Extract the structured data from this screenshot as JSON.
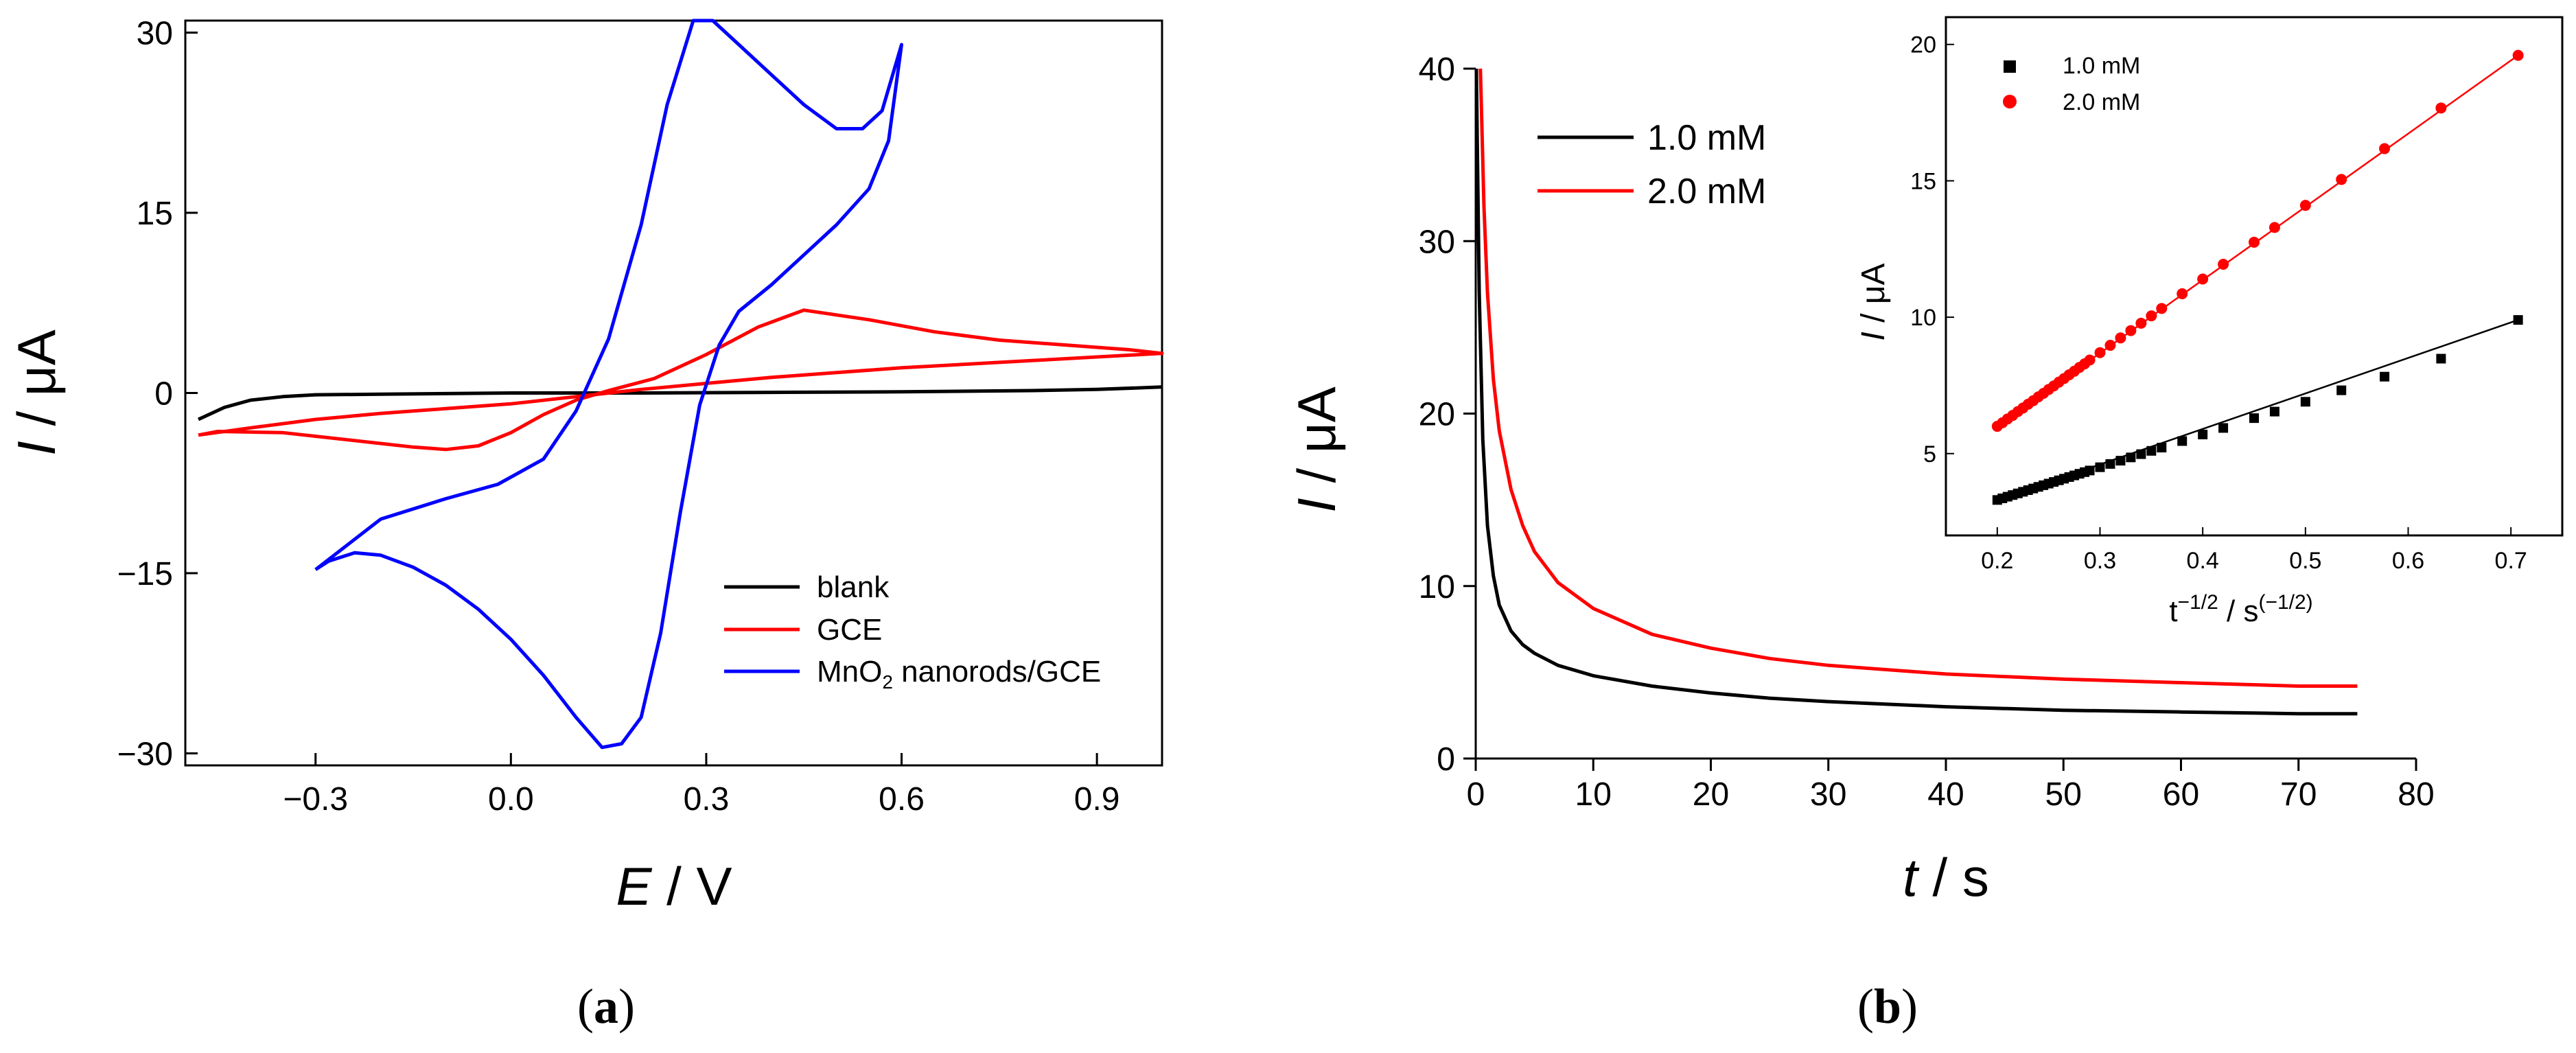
{
  "chart_data": [
    {
      "panel": "(a)",
      "panel_label_open": "(",
      "panel_label_letter": "a",
      "panel_label_close": ")",
      "type": "line",
      "xlabel_var": "E",
      "xlabel_unit": " / V",
      "ylabel_var": "I",
      "ylabel_unit": " / μA",
      "xlim": [
        -0.5,
        1.0
      ],
      "ylim": [
        -31,
        31
      ],
      "xticks": [
        -0.3,
        0.0,
        0.3,
        0.6,
        0.9
      ],
      "xtick_labels": [
        "−0.3",
        "0.0",
        "0.3",
        "0.6",
        "0.9"
      ],
      "yticks": [
        30,
        15,
        0,
        -15,
        -30
      ],
      "ytick_labels": [
        "30",
        "15",
        "0",
        "−15",
        "−30"
      ],
      "legend_position": "bottom-right",
      "series": [
        {
          "name": "blank",
          "color": "#000000",
          "points": [
            [
              -0.48,
              -2.2
            ],
            [
              -0.44,
              -1.2
            ],
            [
              -0.4,
              -0.6
            ],
            [
              -0.35,
              -0.3
            ],
            [
              -0.3,
              -0.15
            ],
            [
              -0.2,
              -0.1
            ],
            [
              0.0,
              0.0
            ],
            [
              0.2,
              0.0
            ],
            [
              0.4,
              0.05
            ],
            [
              0.6,
              0.1
            ],
            [
              0.8,
              0.2
            ],
            [
              0.9,
              0.3
            ],
            [
              1.0,
              0.5
            ]
          ]
        },
        {
          "name": "GCE",
          "color": "#ff0000",
          "points": [
            [
              -0.48,
              -3.5
            ],
            [
              -0.4,
              -2.9
            ],
            [
              -0.3,
              -2.2
            ],
            [
              -0.2,
              -1.7
            ],
            [
              -0.1,
              -1.3
            ],
            [
              0.0,
              -0.9
            ],
            [
              0.1,
              -0.3
            ],
            [
              0.2,
              0.3
            ],
            [
              0.3,
              0.8
            ],
            [
              0.4,
              1.3
            ],
            [
              0.5,
              1.7
            ],
            [
              0.6,
              2.1
            ],
            [
              0.7,
              2.4
            ],
            [
              0.8,
              2.7
            ],
            [
              0.9,
              3.0
            ],
            [
              1.0,
              3.3
            ],
            [
              0.95,
              3.6
            ],
            [
              0.85,
              4.0
            ],
            [
              0.75,
              4.4
            ],
            [
              0.65,
              5.1
            ],
            [
              0.55,
              6.1
            ],
            [
              0.45,
              6.9
            ],
            [
              0.38,
              5.5
            ],
            [
              0.3,
              3.2
            ],
            [
              0.22,
              1.2
            ],
            [
              0.15,
              0.2
            ],
            [
              0.1,
              -0.6
            ],
            [
              0.05,
              -1.8
            ],
            [
              0.0,
              -3.3
            ],
            [
              -0.05,
              -4.4
            ],
            [
              -0.1,
              -4.7
            ],
            [
              -0.15,
              -4.5
            ],
            [
              -0.25,
              -3.9
            ],
            [
              -0.35,
              -3.3
            ],
            [
              -0.45,
              -3.2
            ],
            [
              -0.48,
              -3.5
            ]
          ]
        },
        {
          "name": "MnO2 nanorods/GCE",
          "name_prefix": "MnO",
          "name_sub": "2",
          "name_suffix": " nanorods/GCE",
          "color": "#0000ff",
          "points": [
            [
              -0.3,
              -14.7
            ],
            [
              -0.2,
              -10.5
            ],
            [
              -0.1,
              -8.8
            ],
            [
              -0.02,
              -7.6
            ],
            [
              0.05,
              -5.5
            ],
            [
              0.1,
              -1.5
            ],
            [
              0.15,
              4.5
            ],
            [
              0.2,
              14.0
            ],
            [
              0.24,
              24.0
            ],
            [
              0.28,
              31.0
            ],
            [
              0.31,
              31.0
            ],
            [
              0.35,
              29.0
            ],
            [
              0.4,
              26.5
            ],
            [
              0.45,
              24.0
            ],
            [
              0.5,
              22.0
            ],
            [
              0.54,
              22.0
            ],
            [
              0.57,
              23.5
            ],
            [
              0.6,
              29.0
            ],
            [
              0.58,
              21.0
            ],
            [
              0.55,
              17.0
            ],
            [
              0.5,
              14.0
            ],
            [
              0.45,
              11.5
            ],
            [
              0.4,
              9.0
            ],
            [
              0.35,
              6.8
            ],
            [
              0.32,
              4.0
            ],
            [
              0.29,
              -1.0
            ],
            [
              0.26,
              -10.0
            ],
            [
              0.23,
              -20.0
            ],
            [
              0.2,
              -27.0
            ],
            [
              0.17,
              -29.2
            ],
            [
              0.14,
              -29.5
            ],
            [
              0.1,
              -27.0
            ],
            [
              0.05,
              -23.5
            ],
            [
              0.0,
              -20.5
            ],
            [
              -0.05,
              -18.0
            ],
            [
              -0.1,
              -16.0
            ],
            [
              -0.15,
              -14.5
            ],
            [
              -0.2,
              -13.5
            ],
            [
              -0.24,
              -13.3
            ],
            [
              -0.28,
              -14.0
            ],
            [
              -0.3,
              -14.7
            ]
          ]
        }
      ]
    },
    {
      "panel": "(b)",
      "panel_label_open": "(",
      "panel_label_letter": "b",
      "panel_label_close": ")",
      "type": "line",
      "xlabel_var": "t",
      "xlabel_unit": " / s",
      "ylabel_var": "I",
      "ylabel_unit": " / μA",
      "xlim": [
        0,
        80
      ],
      "ylim": [
        0,
        40
      ],
      "xticks": [
        0,
        10,
        20,
        30,
        40,
        50,
        60,
        70,
        80
      ],
      "xtick_labels": [
        "0",
        "10",
        "20",
        "30",
        "40",
        "50",
        "60",
        "70",
        "80"
      ],
      "yticks": [
        0,
        10,
        20,
        30,
        40
      ],
      "ytick_labels": [
        "0",
        "10",
        "20",
        "30",
        "40"
      ],
      "legend_position": "top-left",
      "series": [
        {
          "name": "1.0 mM",
          "color": "#000000",
          "points": [
            [
              0.05,
              40
            ],
            [
              0.3,
              27.0
            ],
            [
              0.6,
              18.5
            ],
            [
              1,
              13.5
            ],
            [
              1.5,
              10.6
            ],
            [
              2,
              8.9
            ],
            [
              3,
              7.4
            ],
            [
              4,
              6.6
            ],
            [
              5,
              6.1
            ],
            [
              7,
              5.4
            ],
            [
              10,
              4.8
            ],
            [
              15,
              4.2
            ],
            [
              20,
              3.8
            ],
            [
              25,
              3.5
            ],
            [
              30,
              3.3
            ],
            [
              40,
              3.0
            ],
            [
              50,
              2.8
            ],
            [
              60,
              2.7
            ],
            [
              70,
              2.6
            ],
            [
              75,
              2.6
            ]
          ]
        },
        {
          "name": "2.0 mM",
          "color": "#ff0000",
          "points": [
            [
              0.4,
              40
            ],
            [
              0.7,
              32.0
            ],
            [
              1,
              27.0
            ],
            [
              1.5,
              22.0
            ],
            [
              2,
              19.0
            ],
            [
              3,
              15.6
            ],
            [
              4,
              13.5
            ],
            [
              5,
              12.0
            ],
            [
              7,
              10.2
            ],
            [
              10,
              8.7
            ],
            [
              15,
              7.2
            ],
            [
              20,
              6.4
            ],
            [
              25,
              5.8
            ],
            [
              30,
              5.4
            ],
            [
              40,
              4.9
            ],
            [
              50,
              4.6
            ],
            [
              60,
              4.4
            ],
            [
              70,
              4.2
            ],
            [
              75,
              4.2
            ]
          ]
        }
      ]
    },
    {
      "panel": "(b) inset",
      "type": "scatter",
      "xlabel_base": "t",
      "xlabel_sup": "−1/2",
      "xlabel_mid": " / s",
      "xlabel_sup2": "(−1/2)",
      "ylabel_var": "I",
      "ylabel_unit": " / μA",
      "xlim": [
        0.15,
        0.75
      ],
      "ylim": [
        2,
        21
      ],
      "xticks": [
        0.2,
        0.3,
        0.4,
        0.5,
        0.6,
        0.7
      ],
      "xtick_labels": [
        "0.2",
        "0.3",
        "0.4",
        "0.5",
        "0.6",
        "0.7"
      ],
      "yticks": [
        5,
        10,
        15,
        20
      ],
      "ytick_labels": [
        "5",
        "10",
        "15",
        "20"
      ],
      "legend_position": "top-left",
      "series": [
        {
          "name": "1.0 mM",
          "marker": "square",
          "color": "#000000",
          "x": [
            0.2,
            0.205,
            0.21,
            0.215,
            0.22,
            0.225,
            0.23,
            0.235,
            0.24,
            0.245,
            0.25,
            0.255,
            0.26,
            0.265,
            0.27,
            0.275,
            0.28,
            0.285,
            0.29,
            0.3,
            0.31,
            0.32,
            0.33,
            0.34,
            0.35,
            0.36,
            0.38,
            0.4,
            0.42,
            0.45,
            0.47,
            0.5,
            0.535,
            0.577,
            0.632,
            0.707
          ],
          "y": [
            3.3,
            3.36,
            3.42,
            3.48,
            3.54,
            3.6,
            3.66,
            3.72,
            3.78,
            3.84,
            3.9,
            3.96,
            4.02,
            4.08,
            4.14,
            4.2,
            4.26,
            4.32,
            4.38,
            4.5,
            4.62,
            4.74,
            4.86,
            4.98,
            5.1,
            5.22,
            5.46,
            5.7,
            5.94,
            6.3,
            6.54,
            6.9,
            7.32,
            7.82,
            8.48,
            9.9
          ]
        },
        {
          "name": "2.0 mM",
          "marker": "circle",
          "color": "#ff0000",
          "x": [
            0.2,
            0.205,
            0.21,
            0.215,
            0.22,
            0.225,
            0.23,
            0.235,
            0.24,
            0.245,
            0.25,
            0.255,
            0.26,
            0.265,
            0.27,
            0.275,
            0.28,
            0.285,
            0.29,
            0.3,
            0.31,
            0.32,
            0.33,
            0.34,
            0.35,
            0.36,
            0.38,
            0.4,
            0.42,
            0.45,
            0.47,
            0.5,
            0.535,
            0.577,
            0.632,
            0.707
          ],
          "y": [
            6.0,
            6.13,
            6.27,
            6.4,
            6.54,
            6.67,
            6.81,
            6.94,
            7.08,
            7.21,
            7.35,
            7.48,
            7.62,
            7.75,
            7.89,
            8.02,
            8.16,
            8.29,
            8.43,
            8.7,
            8.97,
            9.24,
            9.51,
            9.78,
            10.05,
            10.32,
            10.86,
            11.4,
            11.94,
            12.75,
            13.29,
            14.1,
            15.05,
            16.18,
            17.67,
            19.6
          ]
        }
      ]
    }
  ]
}
